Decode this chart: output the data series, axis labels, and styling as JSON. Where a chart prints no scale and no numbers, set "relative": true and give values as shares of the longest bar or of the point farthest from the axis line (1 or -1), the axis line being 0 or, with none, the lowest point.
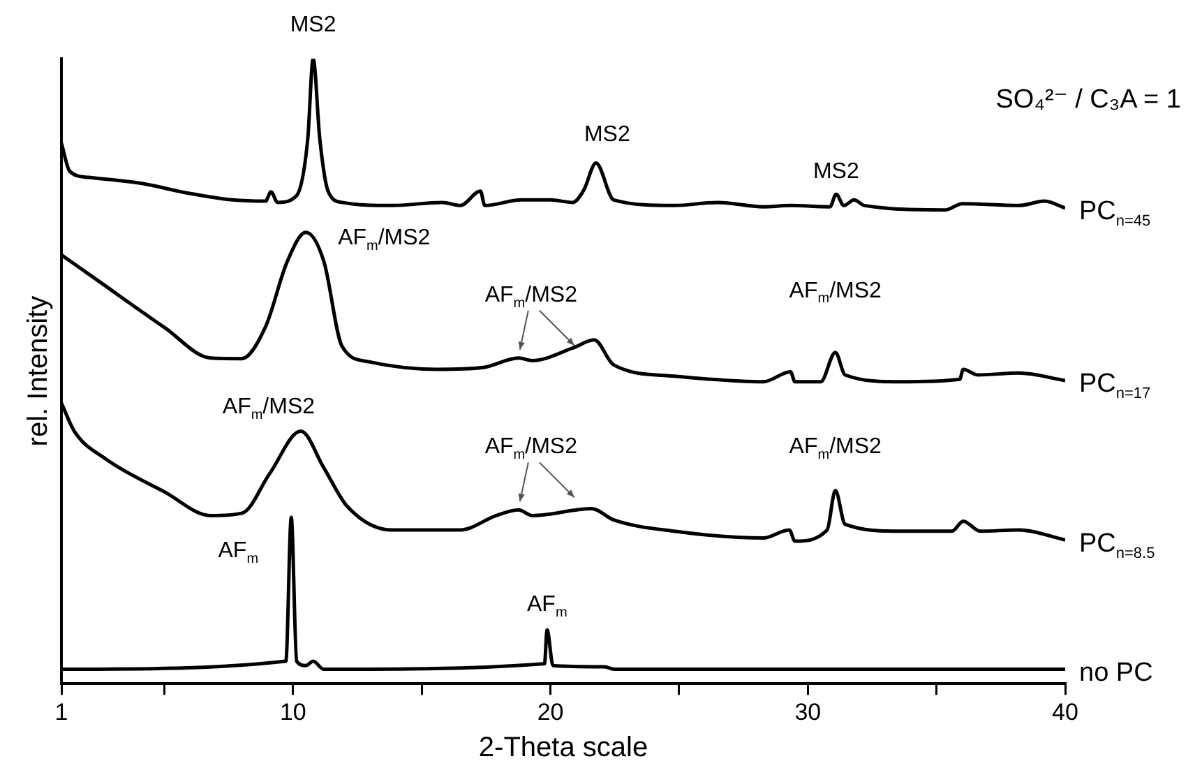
{
  "chart_data": {
    "type": "line",
    "relative": true,
    "xlabel": "2-Theta scale",
    "ylabel": "rel. Intensity",
    "xlim": [
      1,
      40
    ],
    "xticks": [
      1,
      {
        "value": 5,
        "label": null
      },
      10,
      {
        "value": 15,
        "label": null
      },
      20,
      {
        "value": 25,
        "label": null
      },
      30,
      {
        "value": 35,
        "label": null
      },
      40
    ],
    "grid": false,
    "legend": false,
    "marker": "none",
    "series": [
      {
        "name": "PC$_{n=45}$",
        "color": "#000000",
        "x": [
          1,
          1.32,
          2.06,
          4.17,
          5.9,
          7.66,
          8.93,
          9.14,
          9.4,
          10.14,
          10.57,
          10.78,
          11.04,
          11.36,
          11.9,
          13.84,
          15.8,
          16.5,
          17.28,
          17.45,
          18.87,
          20.0,
          20.87,
          21.3,
          21.77,
          22.46,
          24.8,
          26.5,
          28.27,
          29.33,
          30.86,
          31.1,
          31.4,
          31.8,
          32.2,
          35.35,
          36.0,
          38.2,
          39.2,
          40
        ],
        "values": [
          0.865,
          0.82,
          0.81,
          0.8,
          0.785,
          0.774,
          0.772,
          0.787,
          0.77,
          0.781,
          0.871,
          1,
          0.871,
          0.788,
          0.77,
          0.765,
          0.77,
          0.765,
          0.788,
          0.765,
          0.774,
          0.774,
          0.77,
          0.79,
          0.833,
          0.774,
          0.765,
          0.77,
          0.763,
          0.765,
          0.763,
          0.783,
          0.765,
          0.774,
          0.765,
          0.758,
          0.768,
          0.765,
          0.772,
          0.761
        ]
      },
      {
        "name": "PC$_{n=17}$",
        "color": "#000000",
        "x": [
          1,
          2.38,
          5.0,
          6.8,
          8.0,
          8.93,
          9.77,
          10.5,
          11.2,
          11.9,
          12.95,
          15.6,
          17.4,
          18.76,
          19.3,
          20.87,
          21.7,
          22.46,
          24.8,
          28.27,
          29.33,
          29.5,
          30.5,
          31.07,
          31.45,
          33.56,
          35.9,
          36.04,
          36.6,
          38.2,
          40
        ],
        "values": [
          0.686,
          0.646,
          0.57,
          0.521,
          0.52,
          0.571,
          0.675,
          0.722,
          0.675,
          0.54,
          0.515,
          0.503,
          0.506,
          0.521,
          0.517,
          0.537,
          0.55,
          0.51,
          0.492,
          0.483,
          0.499,
          0.483,
          0.483,
          0.53,
          0.494,
          0.483,
          0.487,
          0.503,
          0.494,
          0.497,
          0.485
        ]
      },
      {
        "name": "PC$_{n=8.5}$",
        "color": "#000000",
        "x": [
          1,
          1.5,
          2.74,
          5.0,
          6.8,
          8.03,
          9.09,
          10.3,
          11.2,
          12.1,
          13.84,
          16.5,
          17.9,
          18.76,
          19.3,
          21.6,
          22.46,
          24.8,
          28.27,
          29.28,
          29.5,
          30.75,
          31.07,
          31.45,
          33.56,
          35.6,
          36.04,
          36.7,
          38.2,
          40
        ],
        "values": [
          0.449,
          0.404,
          0.359,
          0.307,
          0.269,
          0.273,
          0.336,
          0.404,
          0.345,
          0.284,
          0.246,
          0.246,
          0.269,
          0.278,
          0.269,
          0.28,
          0.262,
          0.244,
          0.233,
          0.246,
          0.228,
          0.246,
          0.309,
          0.255,
          0.244,
          0.244,
          0.26,
          0.244,
          0.246,
          0.23
        ]
      },
      {
        "name": "no PC",
        "color": "#000000",
        "x": [
          1,
          9.72,
          9.93,
          10.14,
          10.5,
          10.78,
          11.2,
          19.77,
          19.87,
          20.1,
          22.1,
          22.5,
          40
        ],
        "values": [
          0.023,
          0.036,
          0.266,
          0.036,
          0.029,
          0.036,
          0.023,
          0.032,
          0.086,
          0.029,
          0.027,
          0.023,
          0.023
        ]
      }
    ],
    "annotations": [
      "SO₄²⁻ / C₃A = 1",
      {
        "text": "MS2",
        "x": 10.78,
        "y": 1
      },
      {
        "text": "MS2",
        "x": 21.77,
        "y": 0.833
      },
      {
        "text": "MS2",
        "x": 31.1,
        "y": 0.783
      },
      {
        "text": "AF$_{m}$/MS2",
        "x": 10.5,
        "y": 0.722
      },
      {
        "text": "AF$_{m}$/MS2",
        "x": 18.76,
        "y": 0.521
      },
      {
        "text": "AF$_{m}$/MS2",
        "x": 31.07,
        "y": 0.53
      },
      {
        "text": "AF$_{m}$/MS2",
        "x": 10.3,
        "y": 0.404
      },
      {
        "text": "AF$_{m}$/MS2",
        "x": 18.76,
        "y": 0.278
      },
      {
        "text": "AF$_{m}$/MS2",
        "x": 31.07,
        "y": 0.309
      },
      {
        "text": "AF$_{m}$",
        "x": 9.93,
        "y": 0.266
      },
      {
        "text": "AF$_{m}$",
        "x": 19.87,
        "y": 0.086
      }
    ]
  }
}
